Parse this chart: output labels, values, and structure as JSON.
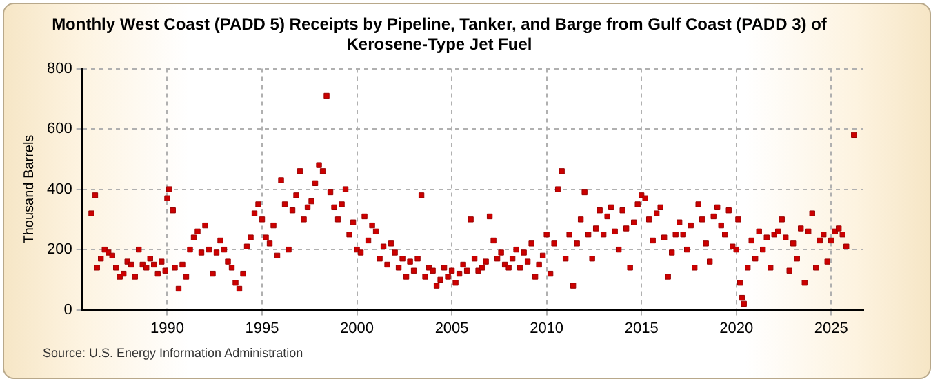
{
  "chart_data": {
    "type": "scatter",
    "title": "Monthly West Coast (PADD 5) Receipts by Pipeline, Tanker, and Barge from Gulf Coast (PADD 3) of Kerosene-Type Jet Fuel",
    "ylabel": "Thousand Barrels",
    "annotations": [
      "Source: U.S. Energy Information Administration"
    ],
    "marker": "square",
    "grid": true,
    "legend": false,
    "xlim": [
      1985.5,
      2026.7
    ],
    "xticks": [
      1990,
      1995,
      2000,
      2005,
      2010,
      2015,
      2020,
      2025
    ],
    "ylim": [
      0,
      800
    ],
    "yticks": [
      0,
      200,
      400,
      600,
      800
    ],
    "series": [
      {
        "color": "#cc0000",
        "x": [
          1986.0,
          1986.2,
          1986.3,
          1986.5,
          1986.7,
          1986.9,
          1987.1,
          1987.3,
          1987.5,
          1987.7,
          1987.9,
          1988.1,
          1988.3,
          1988.5,
          1988.7,
          1988.9,
          1989.1,
          1989.3,
          1989.5,
          1989.7,
          1989.9,
          1990.0,
          1990.1,
          1990.3,
          1990.4,
          1990.6,
          1990.8,
          1991.0,
          1991.2,
          1991.4,
          1991.6,
          1991.8,
          1992.0,
          1992.2,
          1992.4,
          1992.6,
          1992.8,
          1993.0,
          1993.2,
          1993.4,
          1993.6,
          1993.8,
          1994.0,
          1994.2,
          1994.4,
          1994.6,
          1994.8,
          1995.0,
          1995.2,
          1995.4,
          1995.6,
          1995.8,
          1996.0,
          1996.2,
          1996.4,
          1996.6,
          1996.8,
          1997.0,
          1997.2,
          1997.4,
          1997.6,
          1997.8,
          1998.0,
          1998.2,
          1998.4,
          1998.6,
          1998.8,
          1999.0,
          1999.2,
          1999.4,
          1999.6,
          1999.8,
          2000.0,
          2000.2,
          2000.4,
          2000.6,
          2000.8,
          2001.0,
          2001.2,
          2001.4,
          2001.6,
          2001.8,
          2002.0,
          2002.2,
          2002.4,
          2002.6,
          2002.8,
          2003.0,
          2003.2,
          2003.4,
          2003.6,
          2003.8,
          2004.0,
          2004.2,
          2004.4,
          2004.6,
          2004.8,
          2005.0,
          2005.2,
          2005.4,
          2005.6,
          2005.8,
          2006.0,
          2006.2,
          2006.4,
          2006.6,
          2006.8,
          2007.0,
          2007.2,
          2007.4,
          2007.6,
          2007.8,
          2008.0,
          2008.2,
          2008.4,
          2008.6,
          2008.8,
          2009.0,
          2009.2,
          2009.4,
          2009.6,
          2009.8,
          2010.0,
          2010.2,
          2010.4,
          2010.6,
          2010.8,
          2011.0,
          2011.2,
          2011.4,
          2011.6,
          2011.8,
          2012.0,
          2012.2,
          2012.4,
          2012.6,
          2012.8,
          2013.0,
          2013.2,
          2013.4,
          2013.6,
          2013.8,
          2014.0,
          2014.2,
          2014.4,
          2014.6,
          2014.8,
          2015.0,
          2015.2,
          2015.4,
          2015.6,
          2015.8,
          2016.0,
          2016.2,
          2016.4,
          2016.6,
          2016.8,
          2017.0,
          2017.2,
          2017.4,
          2017.6,
          2017.8,
          2018.0,
          2018.2,
          2018.4,
          2018.6,
          2018.8,
          2019.0,
          2019.2,
          2019.4,
          2019.6,
          2019.8,
          2020.0,
          2020.1,
          2020.2,
          2020.3,
          2020.4,
          2020.6,
          2020.8,
          2021.0,
          2021.2,
          2021.4,
          2021.6,
          2021.8,
          2022.0,
          2022.2,
          2022.4,
          2022.6,
          2022.8,
          2023.0,
          2023.2,
          2023.4,
          2023.6,
          2023.8,
          2024.0,
          2024.2,
          2024.4,
          2024.6,
          2024.8,
          2025.0,
          2025.2,
          2025.4,
          2025.6,
          2025.8,
          2026.2
        ],
        "values": [
          320,
          380,
          140,
          170,
          200,
          190,
          180,
          140,
          110,
          120,
          160,
          150,
          110,
          200,
          150,
          140,
          170,
          150,
          120,
          160,
          130,
          370,
          400,
          330,
          140,
          70,
          150,
          110,
          200,
          240,
          260,
          190,
          280,
          200,
          120,
          190,
          230,
          200,
          160,
          140,
          90,
          70,
          120,
          210,
          240,
          320,
          350,
          300,
          240,
          220,
          280,
          180,
          430,
          350,
          200,
          330,
          380,
          460,
          300,
          340,
          360,
          420,
          480,
          460,
          710,
          390,
          340,
          300,
          350,
          400,
          250,
          290,
          200,
          190,
          310,
          230,
          280,
          260,
          170,
          210,
          150,
          220,
          190,
          140,
          170,
          110,
          160,
          130,
          170,
          380,
          110,
          140,
          130,
          80,
          100,
          140,
          110,
          130,
          90,
          120,
          150,
          130,
          300,
          170,
          130,
          140,
          160,
          310,
          230,
          170,
          190,
          150,
          140,
          170,
          200,
          140,
          190,
          160,
          220,
          110,
          150,
          180,
          250,
          120,
          220,
          400,
          460,
          170,
          250,
          80,
          220,
          300,
          390,
          250,
          170,
          270,
          330,
          250,
          310,
          340,
          260,
          200,
          330,
          270,
          140,
          290,
          350,
          380,
          370,
          300,
          230,
          320,
          340,
          240,
          110,
          190,
          250,
          290,
          250,
          200,
          280,
          140,
          350,
          300,
          220,
          160,
          310,
          340,
          280,
          250,
          330,
          210,
          200,
          300,
          90,
          40,
          20,
          140,
          230,
          170,
          260,
          200,
          240,
          140,
          250,
          260,
          300,
          240,
          130,
          220,
          170,
          270,
          90,
          260,
          320,
          140,
          230,
          250,
          160,
          230,
          260,
          270,
          250,
          210,
          580
        ]
      }
    ]
  }
}
